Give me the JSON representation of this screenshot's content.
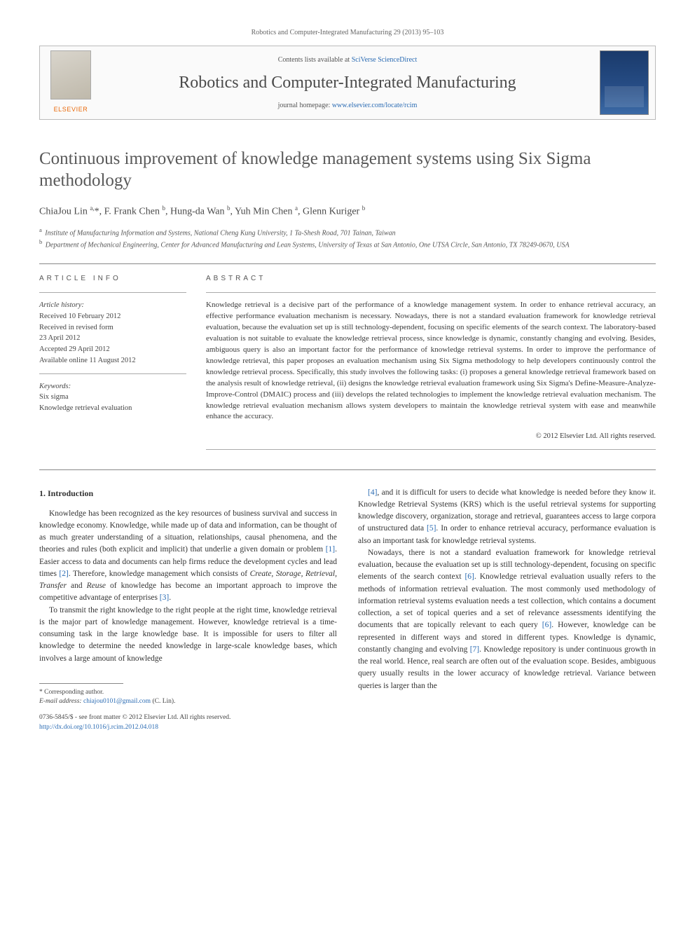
{
  "top_citation": "Robotics and Computer-Integrated Manufacturing 29 (2013) 95–103",
  "masthead": {
    "contents_prefix": "Contents lists available at ",
    "contents_link": "SciVerse ScienceDirect",
    "journal": "Robotics and Computer-Integrated Manufacturing",
    "homepage_prefix": "journal homepage: ",
    "homepage_link": "www.elsevier.com/locate/rcim",
    "publisher": "ELSEVIER"
  },
  "title": "Continuous improvement of knowledge management systems using Six Sigma methodology",
  "authors_html": "ChiaJou Lin <sup>a,</sup>*, F. Frank Chen <sup>b</sup>, Hung-da Wan <sup>b</sup>, Yuh Min Chen <sup>a</sup>, Glenn Kuriger <sup>b</sup>",
  "affiliations": [
    {
      "sup": "a",
      "text": "Institute of Manufacturing Information and Systems, National Cheng Kung University, 1 Ta-Shesh Road, 701 Tainan, Taiwan"
    },
    {
      "sup": "b",
      "text": "Department of Mechanical Engineering, Center for Advanced Manufacturing and Lean Systems, University of Texas at San Antonio, One UTSA Circle, San Antonio, TX 78249-0670, USA"
    }
  ],
  "info": {
    "label": "ARTICLE INFO",
    "history_label": "Article history:",
    "history": [
      "Received 10 February 2012",
      "Received in revised form",
      "23 April 2012",
      "Accepted 29 April 2012",
      "Available online 11 August 2012"
    ],
    "keywords_label": "Keywords:",
    "keywords": [
      "Six sigma",
      "Knowledge retrieval evaluation"
    ]
  },
  "abstract": {
    "label": "ABSTRACT",
    "text": "Knowledge retrieval is a decisive part of the performance of a knowledge management system. In order to enhance retrieval accuracy, an effective performance evaluation mechanism is necessary. Nowadays, there is not a standard evaluation framework for knowledge retrieval evaluation, because the evaluation set up is still technology-dependent, focusing on specific elements of the search context. The laboratory-based evaluation is not suitable to evaluate the knowledge retrieval process, since knowledge is dynamic, constantly changing and evolving. Besides, ambiguous query is also an important factor for the performance of knowledge retrieval systems. In order to improve the performance of knowledge retrieval, this paper proposes an evaluation mechanism using Six Sigma methodology to help developers continuously control the knowledge retrieval process. Specifically, this study involves the following tasks: (i) proposes a general knowledge retrieval framework based on the analysis result of knowledge retrieval, (ii) designs the knowledge retrieval evaluation framework using Six Sigma's Define-Measure-Analyze-Improve-Control (DMAIC) process and (iii) develops the related technologies to implement the knowledge retrieval evaluation mechanism. The knowledge retrieval evaluation mechanism allows system developers to maintain the knowledge retrieval system with ease and meanwhile enhance the accuracy.",
    "copyright": "© 2012 Elsevier Ltd. All rights reserved."
  },
  "body": {
    "heading": "1.  Introduction",
    "left_paras": [
      "Knowledge has been recognized as the key resources of business survival and success in knowledge economy. Knowledge, while made up of data and information, can be thought of as much greater understanding of a situation, relationships, causal phenomena, and the theories and rules (both explicit and implicit) that underlie a given domain or problem [1]. Easier access to data and documents can help firms reduce the development cycles and lead times [2]. Therefore, knowledge management which consists of Create, Storage, Retrieval, Transfer and Reuse of knowledge has become an important approach to improve the competitive advantage of enterprises [3].",
      "To transmit the right knowledge to the right people at the right time, knowledge retrieval is the major part of knowledge management. However, knowledge retrieval is a time-consuming task in the large knowledge base. It is impossible for users to filter all knowledge to determine the needed knowledge in large-scale knowledge bases, which involves a large amount of knowledge"
    ],
    "right_paras": [
      "[4], and it is difficult for users to decide what knowledge is needed before they know it. Knowledge Retrieval Systems (KRS) which is the useful retrieval systems for supporting knowledge discovery, organization, storage and retrieval, guarantees access to large corpora of unstructured data [5]. In order to enhance retrieval accuracy, performance evaluation is also an important task for knowledge retrieval systems.",
      "Nowadays, there is not a standard evaluation framework for knowledge retrieval evaluation, because the evaluation set up is still technology-dependent, focusing on specific elements of the search context [6]. Knowledge retrieval evaluation usually refers to the methods of information retrieval evaluation. The most commonly used methodology of information retrieval systems evaluation needs a test collection, which contains a document collection, a set of topical queries and a set of relevance assessments identifying the documents that are topically relevant to each query [6]. However, knowledge can be represented in different ways and stored in different types. Knowledge is dynamic, constantly changing and evolving [7]. Knowledge repository is under continuous growth in the real world. Hence, real search are often out of the evaluation scope. Besides, ambiguous query usually results in the lower accuracy of knowledge retrieval. Variance between queries is larger than the"
    ],
    "refs": [
      "[1]",
      "[2]",
      "[3]",
      "[4]",
      "[5]",
      "[6]",
      "[6]",
      "[7]"
    ]
  },
  "footnote": {
    "corr": "* Corresponding author.",
    "email_label": "E-mail address:",
    "email": "chiajou0101@gmail.com",
    "email_who": "(C. Lin)."
  },
  "bottom": {
    "line1": "0736-5845/$ - see front matter © 2012 Elsevier Ltd. All rights reserved.",
    "doi_url": "http://dx.doi.org/10.1016/j.rcim.2012.04.018"
  },
  "colors": {
    "link": "#2a6bb3",
    "elsevier_orange": "#e96a0c",
    "text": "#3a3a3a",
    "rule": "#888888"
  }
}
